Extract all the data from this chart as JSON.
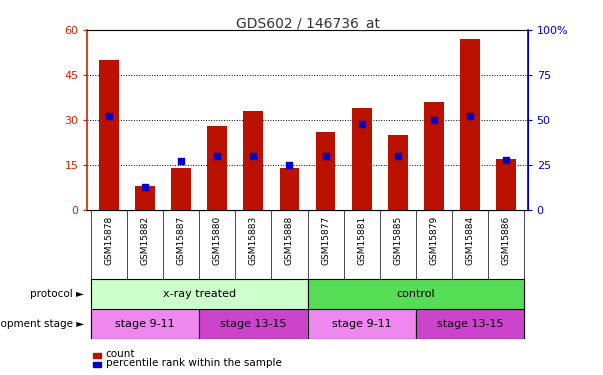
{
  "title": "GDS602 / 146736_at",
  "samples": [
    "GSM15878",
    "GSM15882",
    "GSM15887",
    "GSM15880",
    "GSM15883",
    "GSM15888",
    "GSM15877",
    "GSM15881",
    "GSM15885",
    "GSM15879",
    "GSM15884",
    "GSM15886"
  ],
  "counts": [
    50,
    8,
    14,
    28,
    33,
    14,
    26,
    34,
    25,
    36,
    57,
    17
  ],
  "percentiles": [
    52,
    13,
    27,
    30,
    30,
    25,
    30,
    48,
    30,
    50,
    52,
    28
  ],
  "ylim_left": [
    0,
    60
  ],
  "ylim_right": [
    0,
    100
  ],
  "yticks_left": [
    0,
    15,
    30,
    45,
    60
  ],
  "yticks_right": [
    0,
    25,
    50,
    75,
    100
  ],
  "ytick_labels_left": [
    "0",
    "15",
    "30",
    "45",
    "60"
  ],
  "ytick_labels_right": [
    "0",
    "25",
    "50",
    "75",
    "100%"
  ],
  "bar_color": "#bb1100",
  "dot_color": "#0000cc",
  "protocol_groups": [
    {
      "label": "x-ray treated",
      "start": 0,
      "end": 6,
      "color": "#ccffcc"
    },
    {
      "label": "control",
      "start": 6,
      "end": 12,
      "color": "#55dd55"
    }
  ],
  "stage_groups": [
    {
      "label": "stage 9-11",
      "start": 0,
      "end": 3,
      "color": "#ee88ee"
    },
    {
      "label": "stage 13-15",
      "start": 3,
      "end": 6,
      "color": "#cc44cc"
    },
    {
      "label": "stage 9-11",
      "start": 6,
      "end": 9,
      "color": "#ee88ee"
    },
    {
      "label": "stage 13-15",
      "start": 9,
      "end": 12,
      "color": "#cc44cc"
    }
  ],
  "legend_count_label": "count",
  "legend_pct_label": "percentile rank within the sample",
  "protocol_label": "protocol",
  "stage_label": "development stage",
  "plot_bg_color": "#ffffff",
  "left_axis_color": "#cc2200",
  "right_axis_color": "#0000cc",
  "sample_bg_color": "#d3d3d3",
  "sample_border_color": "#888888"
}
